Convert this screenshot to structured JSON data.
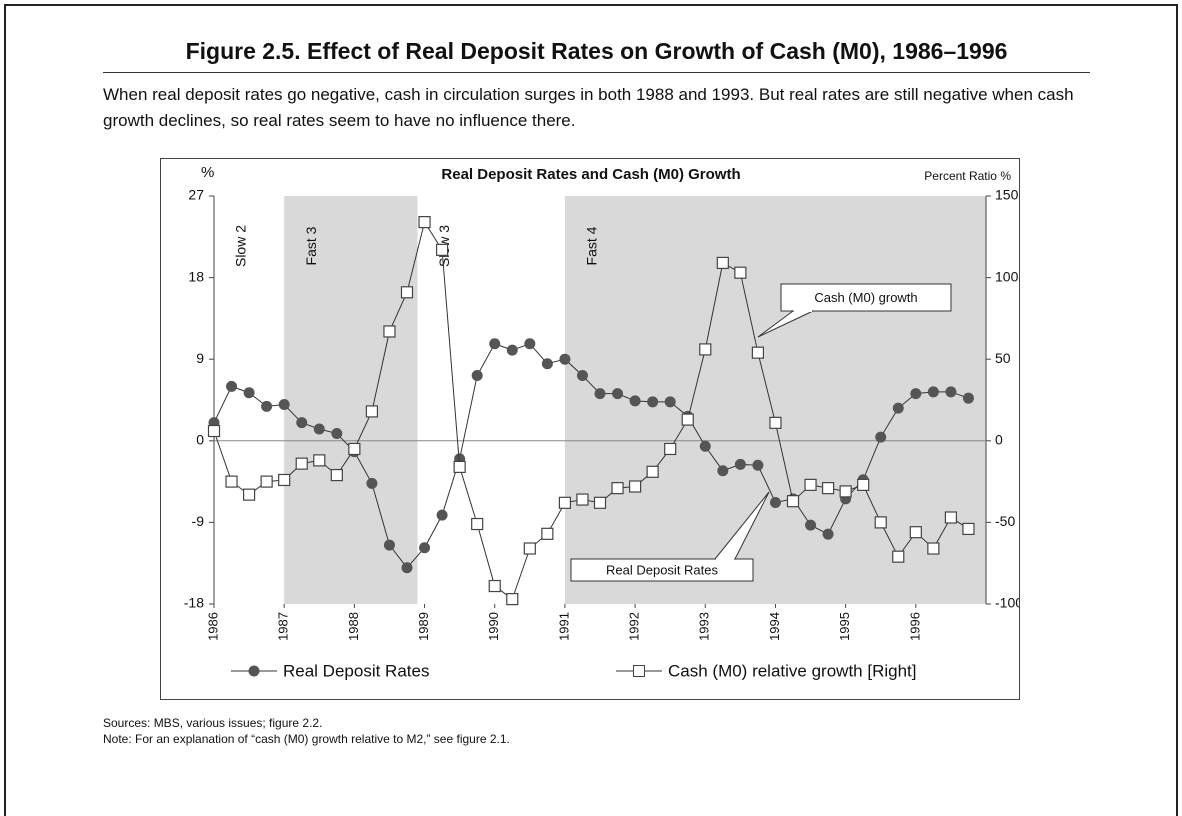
{
  "title": "Figure 2.5. Effect of Real Deposit Rates on Growth of Cash (M0), 1986–1996",
  "subtitle": "When real deposit rates go negative, cash in circulation surges in both 1988 and 1993. But real rates are still negative when cash growth declines, so real rates seem to have no influence there.",
  "chart_data": {
    "type": "line",
    "title": "Real Deposit Rates and Cash (M0) Growth",
    "y_label": "%",
    "y2_label": "Percent Ratio %",
    "x": [
      1986,
      1986.25,
      1986.5,
      1986.75,
      1987,
      1987.25,
      1987.5,
      1987.75,
      1988,
      1988.25,
      1988.5,
      1988.75,
      1989,
      1989.25,
      1989.5,
      1989.75,
      1990,
      1990.25,
      1990.5,
      1990.75,
      1991,
      1991.25,
      1991.5,
      1991.75,
      1992,
      1992.25,
      1992.5,
      1992.75,
      1993,
      1993.25,
      1993.5,
      1993.75,
      1994,
      1994.25,
      1994.5,
      1994.75,
      1995,
      1995.25,
      1995.5,
      1995.75,
      1996,
      1996.25,
      1996.5,
      1996.75
    ],
    "xlim": [
      1986,
      1997
    ],
    "xticks": [
      1986,
      1987,
      1988,
      1989,
      1990,
      1991,
      1992,
      1993,
      1994,
      1995,
      1996
    ],
    "ylim": [
      -18,
      27
    ],
    "yticks": [
      -18,
      -9,
      0,
      9,
      18,
      27
    ],
    "y2lim": [
      -100,
      150
    ],
    "y2ticks": [
      -100,
      -50,
      0,
      50,
      100,
      150
    ],
    "series": [
      {
        "name": "Real Deposit Rates",
        "color": "#555555",
        "marker": "circle",
        "values": [
          2,
          6,
          5.3,
          3.8,
          4,
          2,
          1.3,
          0.8,
          -1.2,
          -4.7,
          -11.5,
          -14,
          -11.8,
          -8.2,
          -2,
          7.2,
          10.7,
          10,
          10.7,
          8.5,
          9,
          7.2,
          5.2,
          5.2,
          4.4,
          4.3,
          4.3,
          2.7,
          -0.6,
          -3.3,
          -2.6,
          -2.7,
          -6.8,
          -6.4,
          -9.3,
          -10.3,
          -6.4,
          -4.3,
          0.4,
          3.6,
          5.2,
          5.4,
          5.4,
          4.7
        ]
      },
      {
        "name": "Cash (M0) relative growth [Right]",
        "color": "#444444",
        "marker": "square",
        "axis": "y2",
        "values": [
          6,
          -25,
          -33,
          -25,
          -24,
          -14,
          -12,
          -21,
          -5,
          18,
          67,
          91,
          134,
          117,
          -16,
          -51,
          -89,
          -97,
          -66,
          -57,
          -38,
          -36,
          -38,
          -29,
          -28,
          -19,
          -5,
          13,
          56,
          109,
          103,
          54,
          11,
          -37,
          -27,
          -29,
          -31,
          -27,
          -50,
          -71,
          -56,
          -66,
          -47,
          -54
        ]
      }
    ],
    "periods": [
      {
        "label": "Slow 2",
        "start": 1986,
        "end": 1987,
        "shaded": false
      },
      {
        "label": "Fast 3",
        "start": 1987,
        "end": 1988.9,
        "shaded": true
      },
      {
        "label": "Slow 3",
        "start": 1988.9,
        "end": 1991,
        "shaded": false
      },
      {
        "label": "Fast 4",
        "start": 1991,
        "end": 1997,
        "shaded": true
      }
    ],
    "annotations": [
      "Cash (M0) growth",
      "Real Deposit Rates"
    ],
    "shade_color": "#d9d9d9"
  },
  "sources": "Sources: MBS, various issues; figure 2.2.",
  "note": "Note: For an explanation of “cash (M0) growth relative to M2,” see figure 2.1."
}
